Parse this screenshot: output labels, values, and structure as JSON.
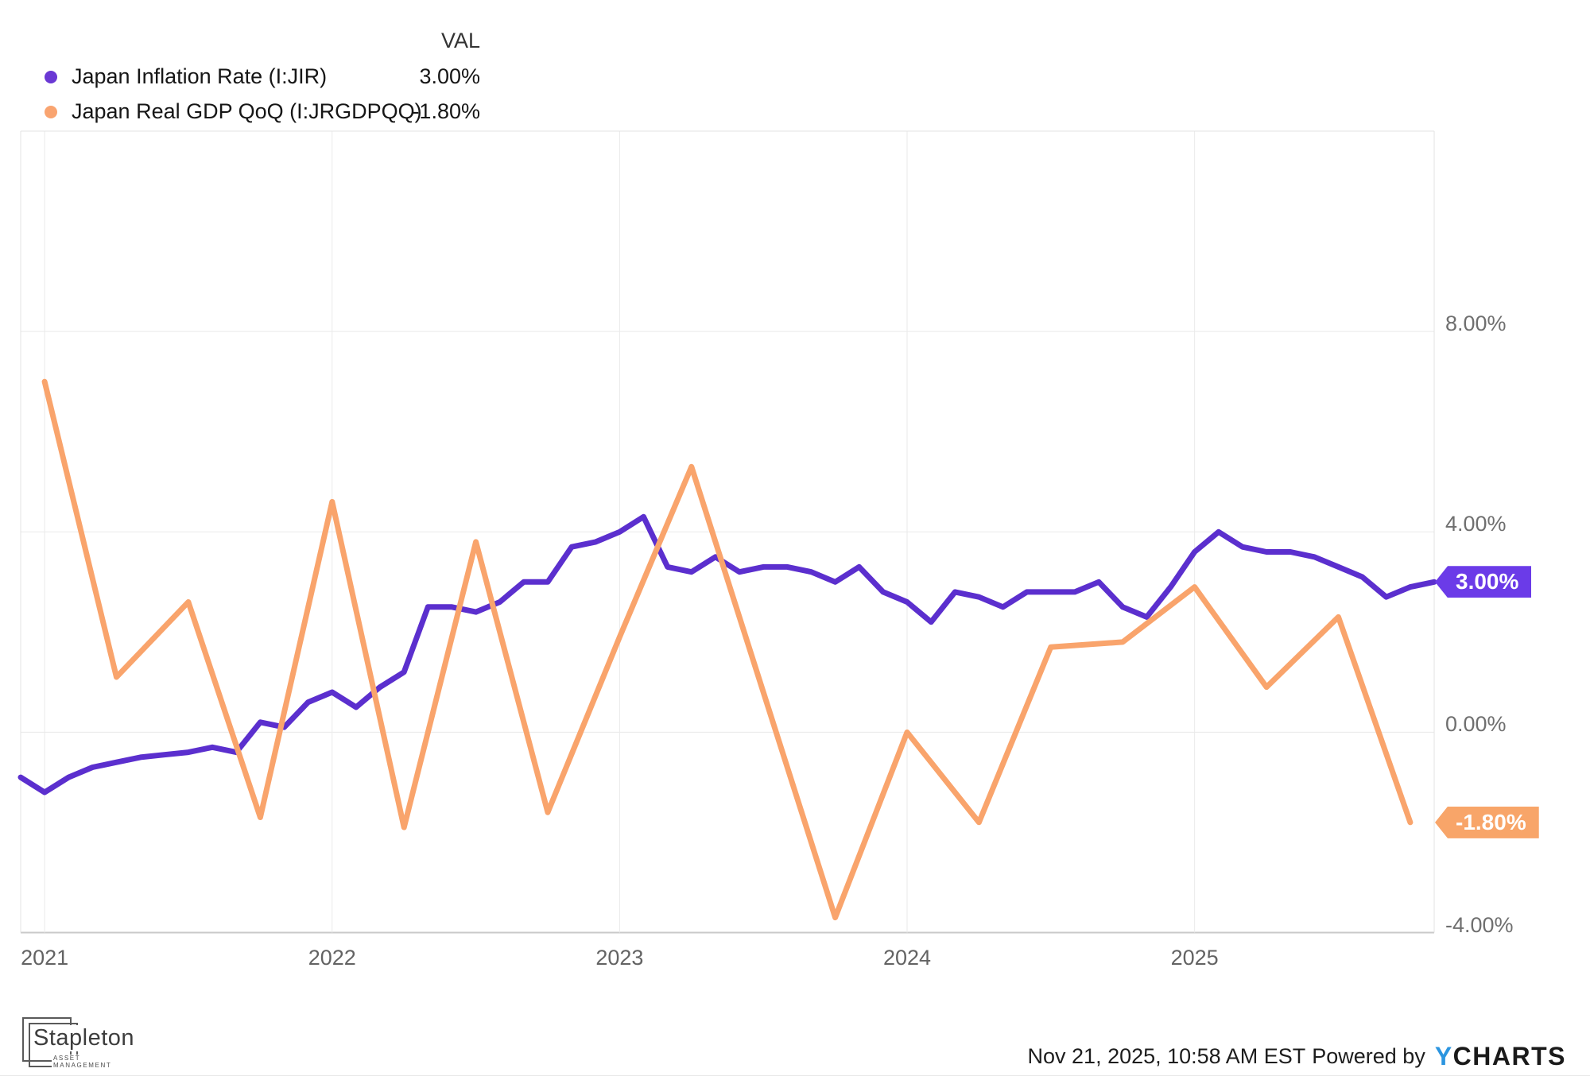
{
  "legend": {
    "val_header": "VAL",
    "series": [
      {
        "label": "Japan Inflation Rate (I:JIR)",
        "value": "3.00%",
        "dot_color": "#6a38d4"
      },
      {
        "label": "Japan Real GDP QoQ (I:JRGDPQQ)",
        "value": "-1.80%",
        "dot_color": "#f9a470"
      }
    ]
  },
  "chart_data": {
    "type": "line",
    "title": "",
    "x_range": {
      "start": "Nov 2020",
      "end": "Oct 2025",
      "unit": "month"
    },
    "x_tick_labels": [
      "2021",
      "2022",
      "2023",
      "2024",
      "2025"
    ],
    "x_tick_month_indices": [
      1,
      13,
      25,
      37,
      49
    ],
    "y_axis": {
      "ticks": [
        8,
        4,
        0,
        -4
      ],
      "tick_labels": [
        "8.00%",
        "4.00%",
        "0.00%",
        "-4.00%"
      ],
      "ylim": [
        -4,
        12
      ],
      "unit": "%"
    },
    "grid": true,
    "legend_position": "top-left",
    "series": [
      {
        "name": "Japan Inflation Rate (I:JIR)",
        "frequency": "monthly",
        "color": "#5b2fce",
        "month_offset": 0,
        "month_step": 1,
        "values": [
          -0.9,
          -1.2,
          -0.9,
          -0.7,
          -0.6,
          -0.5,
          -0.45,
          -0.4,
          -0.3,
          -0.4,
          0.2,
          0.1,
          0.6,
          0.8,
          0.5,
          0.9,
          1.2,
          2.5,
          2.5,
          2.4,
          2.6,
          3.0,
          3.0,
          3.7,
          3.8,
          4.0,
          4.3,
          3.3,
          3.2,
          3.5,
          3.2,
          3.3,
          3.3,
          3.2,
          3.0,
          3.3,
          2.8,
          2.6,
          2.2,
          2.8,
          2.7,
          2.5,
          2.8,
          2.8,
          2.8,
          3.0,
          2.5,
          2.3,
          2.9,
          3.6,
          4.0,
          3.7,
          3.6,
          3.6,
          3.5,
          3.3,
          3.1,
          2.7,
          2.9,
          3.0
        ]
      },
      {
        "name": "Japan Real GDP QoQ (I:JRGDPQQ)",
        "frequency": "quarterly",
        "color": "#f9a46c",
        "month_offset": 1,
        "month_step": 3,
        "values": [
          7.0,
          1.1,
          2.6,
          -1.7,
          4.6,
          -1.9,
          3.8,
          -1.6,
          1.9,
          5.3,
          0.8,
          -3.7,
          0.0,
          -1.8,
          1.7,
          1.8,
          2.9,
          0.9,
          2.3,
          -1.8
        ]
      }
    ],
    "end_value_labels": [
      {
        "text": "3.00%",
        "value": 3.0,
        "color": "#6b3be8"
      },
      {
        "text": "-1.80%",
        "value": -1.8,
        "color": "#f8a569"
      }
    ]
  },
  "footer": {
    "timestamp": "Nov 21, 2025, 10:58 AM EST",
    "powered_by": "Powered by",
    "brand_y": "Y",
    "brand_rest": "CHARTS",
    "logo_title": "Stapleton",
    "logo_subtitle": "ASSET MANAGEMENT"
  }
}
